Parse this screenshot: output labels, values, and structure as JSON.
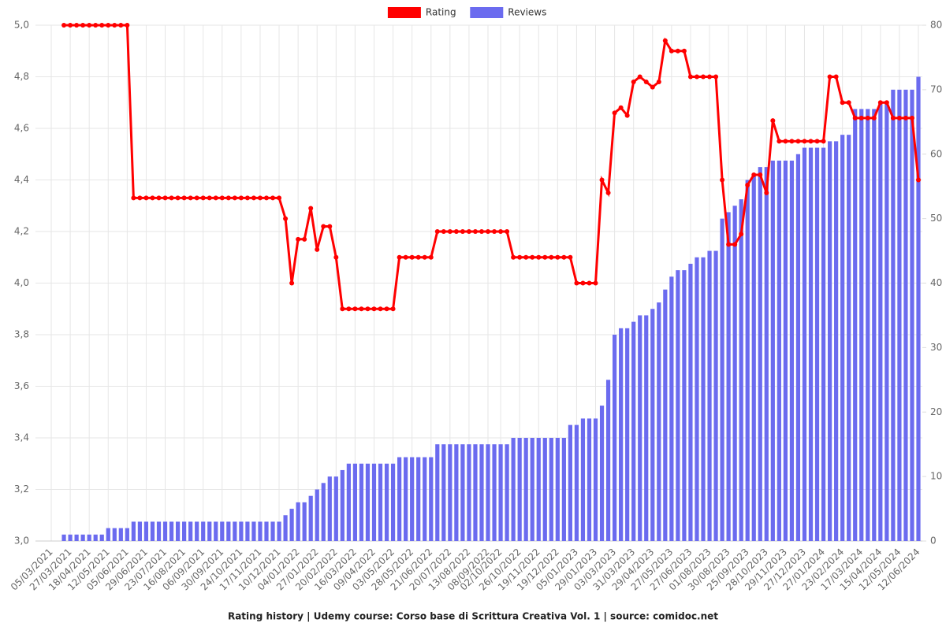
{
  "chart_data": {
    "type": "combo",
    "title": "Rating history | Udemy course: Corso base di  Scrittura Creativa Vol. 1 | source: comidoc.net",
    "categories": [
      "05/03/2021",
      null,
      null,
      "27/03/2021",
      null,
      null,
      "18/04/2021",
      null,
      null,
      "12/05/2021",
      null,
      null,
      "05/06/2021",
      null,
      null,
      "29/06/2021",
      null,
      null,
      "23/07/2021",
      null,
      null,
      "16/08/2021",
      null,
      null,
      "06/09/2021",
      null,
      null,
      "30/09/2021",
      null,
      null,
      "24/10/2021",
      null,
      null,
      "17/11/2021",
      null,
      null,
      "10/12/2021",
      null,
      null,
      "04/01/2022",
      null,
      null,
      "27/01/2022",
      null,
      null,
      "20/02/2022",
      null,
      null,
      "16/03/2022",
      null,
      null,
      "09/04/2022",
      null,
      null,
      "03/05/2022",
      null,
      null,
      "28/05/2022",
      null,
      null,
      "21/06/2022",
      null,
      null,
      "20/07/2022",
      null,
      null,
      "13/08/2022",
      null,
      null,
      "08/09/2022",
      null,
      "02/10/2022",
      null,
      null,
      "26/10/2022",
      null,
      null,
      "19/11/2022",
      null,
      null,
      "19/12/2022",
      null,
      null,
      "05/01/2023",
      null,
      null,
      "29/01/2023",
      null,
      null,
      "03/03/2023",
      null,
      null,
      "31/03/2023",
      null,
      null,
      "29/04/2023",
      null,
      null,
      "27/05/2023",
      null,
      null,
      "27/06/2023",
      null,
      null,
      "01/08/2023",
      null,
      null,
      "30/08/2023",
      null,
      null,
      "25/09/2023",
      null,
      null,
      "28/10/2023",
      null,
      null,
      "29/11/2023",
      null,
      null,
      "27/12/2023",
      null,
      null,
      "27/01/2024",
      null,
      null,
      "23/02/2024",
      null,
      null,
      "17/03/2024",
      null,
      null,
      "15/04/2024",
      null,
      null,
      "12/05/2024",
      null,
      null,
      "12/06/2024"
    ],
    "series": [
      {
        "name": "Rating",
        "type": "line",
        "color": "#ff0000",
        "values": [
          null,
          null,
          5,
          5,
          5,
          5,
          5,
          5,
          5,
          5,
          5,
          5,
          5,
          4.33,
          4.33,
          4.33,
          4.33,
          4.33,
          4.33,
          4.33,
          4.33,
          4.33,
          4.33,
          4.33,
          4.33,
          4.33,
          4.33,
          4.33,
          4.33,
          4.33,
          4.33,
          4.33,
          4.33,
          4.33,
          4.33,
          4.33,
          4.33,
          4.25,
          4,
          4.17,
          4.17,
          4.29,
          4.13,
          4.22,
          4.22,
          4.1,
          3.9,
          3.9,
          3.9,
          3.9,
          3.9,
          3.9,
          3.9,
          3.9,
          3.9,
          4.1,
          4.1,
          4.1,
          4.1,
          4.1,
          4.1,
          4.2,
          4.2,
          4.2,
          4.2,
          4.2,
          4.2,
          4.2,
          4.2,
          4.2,
          4.2,
          4.2,
          4.2,
          4.1,
          4.1,
          4.1,
          4.1,
          4.1,
          4.1,
          4.1,
          4.1,
          4.1,
          4.1,
          4,
          4,
          4,
          4,
          4.4,
          4.35,
          4.66,
          4.68,
          4.65,
          4.78,
          4.8,
          4.78,
          4.76,
          4.78,
          4.94,
          4.9,
          4.9,
          4.9,
          4.8,
          4.8,
          4.8,
          4.8,
          4.8,
          4.4,
          4.15,
          4.15,
          4.19,
          4.38,
          4.42,
          4.42,
          4.35,
          4.63,
          4.55,
          4.55,
          4.55,
          4.55,
          4.55,
          4.55,
          4.55,
          4.55,
          4.8,
          4.8,
          4.7,
          4.7,
          4.64,
          4.64,
          4.64,
          4.64,
          4.7,
          4.7,
          4.64,
          4.64,
          4.64,
          4.64,
          4.4
        ]
      },
      {
        "name": "Reviews",
        "type": "bar",
        "axis": "y2",
        "color": "#6b6bef",
        "values": [
          null,
          null,
          1,
          1,
          1,
          1,
          1,
          1,
          1,
          2,
          2,
          2,
          2,
          3,
          3,
          3,
          3,
          3,
          3,
          3,
          3,
          3,
          3,
          3,
          3,
          3,
          3,
          3,
          3,
          3,
          3,
          3,
          3,
          3,
          3,
          3,
          3,
          4,
          5,
          6,
          6,
          7,
          8,
          9,
          10,
          10,
          11,
          12,
          12,
          12,
          12,
          12,
          12,
          12,
          12,
          13,
          13,
          13,
          13,
          13,
          13,
          15,
          15,
          15,
          15,
          15,
          15,
          15,
          15,
          15,
          15,
          15,
          15,
          16,
          16,
          16,
          16,
          16,
          16,
          16,
          16,
          16,
          18,
          18,
          19,
          19,
          19,
          21,
          25,
          32,
          33,
          33,
          34,
          35,
          35,
          36,
          37,
          39,
          41,
          42,
          42,
          43,
          44,
          44,
          45,
          45,
          50,
          51,
          52,
          53,
          56,
          57,
          58,
          58,
          59,
          59,
          59,
          59,
          60,
          61,
          61,
          61,
          61,
          62,
          62,
          63,
          63,
          67,
          67,
          67,
          67,
          68,
          68,
          70,
          70,
          70,
          70,
          72
        ]
      }
    ],
    "ylim": [
      3,
      5
    ],
    "yticks": [
      {
        "value": 3,
        "label": "3,0"
      },
      {
        "value": 3.2,
        "label": "3,2"
      },
      {
        "value": 3.4,
        "label": "3,4"
      },
      {
        "value": 3.6,
        "label": "3,6"
      },
      {
        "value": 3.8,
        "label": "3,8"
      },
      {
        "value": 4,
        "label": "4,0"
      },
      {
        "value": 4.2,
        "label": "4,2"
      },
      {
        "value": 4.4,
        "label": "4,4"
      },
      {
        "value": 4.6,
        "label": "4,6"
      },
      {
        "value": 4.8,
        "label": "4,8"
      },
      {
        "value": 5,
        "label": "5,0"
      }
    ],
    "y2lim": [
      0,
      80
    ],
    "y2ticks": [
      0,
      10,
      20,
      30,
      40,
      50,
      60,
      70,
      80
    ],
    "grid": true,
    "legend": "top"
  }
}
